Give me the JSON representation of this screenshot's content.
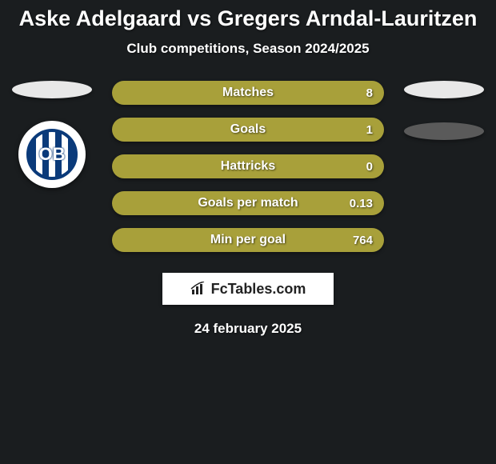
{
  "background_color": "#1a1d1f",
  "title": {
    "text": "Aske Adelgaard vs Gregers Arndal-Lauritzen",
    "fontsize": 27,
    "color": "#ffffff"
  },
  "subtitle": {
    "text": "Club competitions, Season 2024/2025",
    "fontsize": 17,
    "color": "#ffffff"
  },
  "bar_color": "#a8a03a",
  "bars": [
    {
      "label": "Matches",
      "value_left": "",
      "value_right": "8"
    },
    {
      "label": "Goals",
      "value_left": "",
      "value_right": "1"
    },
    {
      "label": "Hattricks",
      "value_left": "",
      "value_right": "0"
    },
    {
      "label": "Goals per match",
      "value_left": "",
      "value_right": "0.13"
    },
    {
      "label": "Min per goal",
      "value_left": "",
      "value_right": "764"
    }
  ],
  "left_player": {
    "oval_color": "#e8e8e8",
    "club_badge": {
      "bg": "#ffffff",
      "inner": "#0a3a7a",
      "stripe_a": "#0a3a7a",
      "stripe_b": "#ffffff",
      "text": "OB",
      "text_color": "#ffffff"
    }
  },
  "right_player": {
    "oval1_color": "#e8e8e8",
    "oval2_color": "#5a5a5a",
    "oval_gap": 30
  },
  "attribution": {
    "text": "FcTables.com",
    "icon_color": "#222222",
    "bg": "#ffffff"
  },
  "date": "24 february 2025"
}
